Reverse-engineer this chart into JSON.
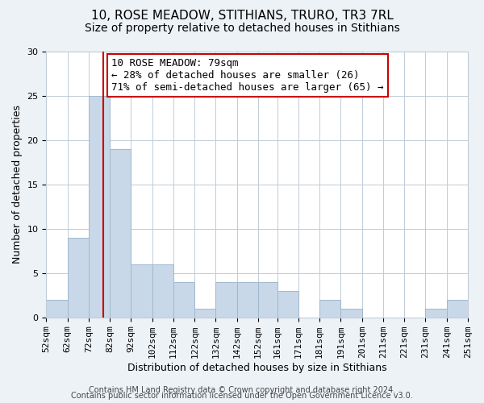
{
  "title": "10, ROSE MEADOW, STITHIANS, TRURO, TR3 7RL",
  "subtitle": "Size of property relative to detached houses in Stithians",
  "xlabel": "Distribution of detached houses by size in Stithians",
  "ylabel": "Number of detached properties",
  "bar_color": "#c8d8e8",
  "bar_edge_color": "#a0b8cc",
  "bin_edges": [
    52,
    62,
    72,
    82,
    92,
    102,
    112,
    122,
    132,
    142,
    152,
    161,
    171,
    181,
    191,
    201,
    211,
    221,
    231,
    241,
    251
  ],
  "bin_labels": [
    "52sqm",
    "62sqm",
    "72sqm",
    "82sqm",
    "92sqm",
    "102sqm",
    "112sqm",
    "122sqm",
    "132sqm",
    "142sqm",
    "152sqm",
    "161sqm",
    "171sqm",
    "181sqm",
    "191sqm",
    "201sqm",
    "211sqm",
    "221sqm",
    "231sqm",
    "241sqm",
    "251sqm"
  ],
  "counts": [
    2,
    9,
    25,
    19,
    6,
    6,
    4,
    1,
    4,
    4,
    4,
    3,
    0,
    2,
    1,
    0,
    0,
    0,
    1,
    2
  ],
  "property_line_x": 79,
  "vline_color": "#cc0000",
  "annotation_text": "10 ROSE MEADOW: 79sqm\n← 28% of detached houses are smaller (26)\n71% of semi-detached houses are larger (65) →",
  "annotation_box_color": "white",
  "annotation_box_edge": "#cc0000",
  "ylim": [
    0,
    30
  ],
  "yticks": [
    0,
    5,
    10,
    15,
    20,
    25,
    30
  ],
  "footer_line1": "Contains HM Land Registry data © Crown copyright and database right 2024.",
  "footer_line2": "Contains public sector information licensed under the Open Government Licence v3.0.",
  "background_color": "#edf2f7",
  "plot_background": "white",
  "grid_color": "#c0ccd8",
  "title_fontsize": 11,
  "subtitle_fontsize": 10,
  "axis_label_fontsize": 9,
  "tick_fontsize": 8,
  "annotation_fontsize": 9,
  "footer_fontsize": 7
}
